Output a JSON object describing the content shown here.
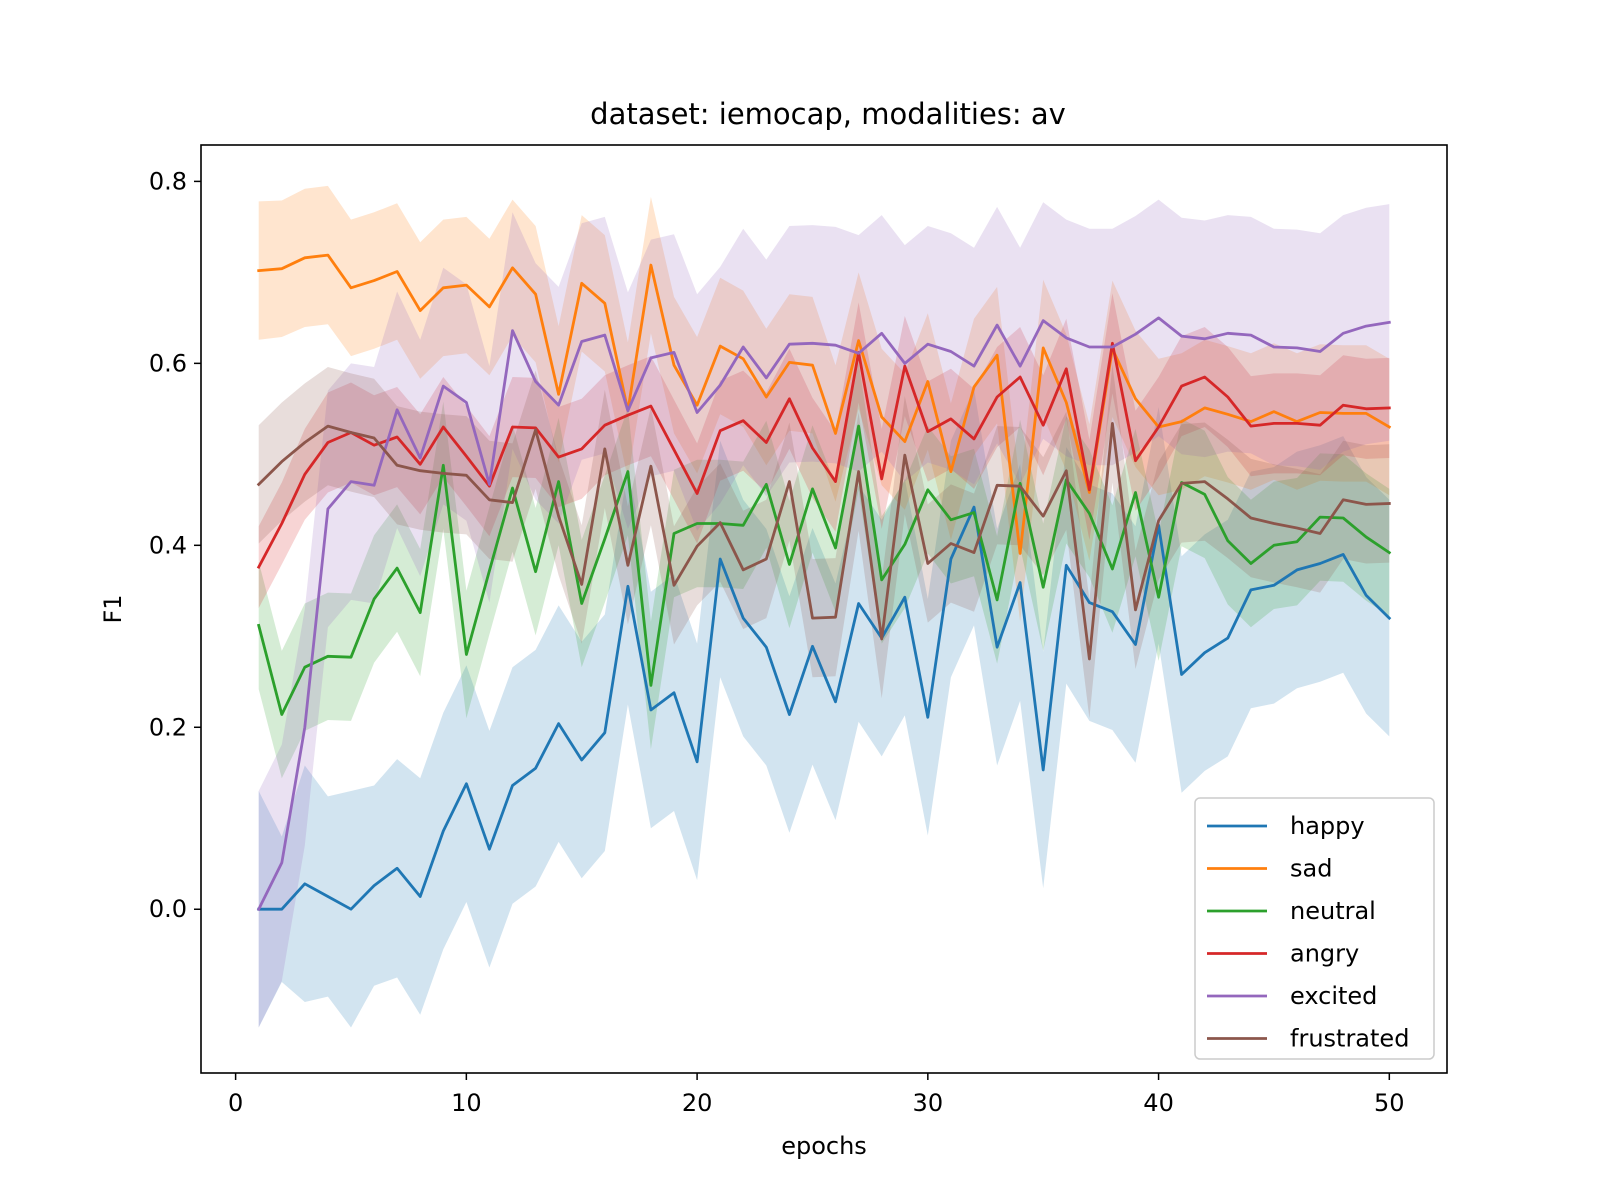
{
  "chart_data": {
    "type": "line",
    "title": "dataset: iemocap, modalities: av",
    "xlabel": "epochs",
    "ylabel": "F1",
    "xlim": [
      -1.5,
      52.5
    ],
    "ylim": [
      -0.18,
      0.84
    ],
    "xticks": [
      0,
      10,
      20,
      30,
      40,
      50
    ],
    "yticks": [
      0.0,
      0.2,
      0.4,
      0.6,
      0.8
    ],
    "xtick_labels": [
      "0",
      "10",
      "20",
      "30",
      "40",
      "50"
    ],
    "ytick_labels": [
      "0.0",
      "0.2",
      "0.4",
      "0.6",
      "0.8"
    ],
    "grid": false,
    "legend_position": "lower-right",
    "x": [
      1,
      2,
      3,
      4,
      5,
      6,
      7,
      8,
      9,
      10,
      11,
      12,
      13,
      14,
      15,
      16,
      17,
      18,
      19,
      20,
      21,
      22,
      23,
      24,
      25,
      26,
      27,
      28,
      29,
      30,
      31,
      32,
      33,
      34,
      35,
      36,
      37,
      38,
      39,
      40,
      41,
      42,
      43,
      44,
      45,
      46,
      47,
      48,
      49,
      50
    ],
    "series": [
      {
        "name": "happy",
        "color": "#1f77b4",
        "values": [
          0.0,
          0.0,
          0.028,
          0.014,
          0.0,
          0.026,
          0.045,
          0.014,
          0.086,
          0.138,
          0.066,
          0.136,
          0.155,
          0.204,
          0.164,
          0.194,
          0.355,
          0.219,
          0.238,
          0.162,
          0.385,
          0.32,
          0.288,
          0.214,
          0.289,
          0.228,
          0.336,
          0.298,
          0.343,
          0.211,
          0.385,
          0.442,
          0.288,
          0.359,
          0.153,
          0.378,
          0.337,
          0.327,
          0.291,
          0.422,
          0.258,
          0.282,
          0.298,
          0.351,
          0.356,
          0.373,
          0.38,
          0.39,
          0.345,
          0.32
        ],
        "band": [
          0.13,
          0.08,
          0.13,
          0.11,
          0.13,
          0.11,
          0.12,
          0.13,
          0.13,
          0.13,
          0.13,
          0.13,
          0.13,
          0.13,
          0.13,
          0.13,
          0.13,
          0.13,
          0.13,
          0.13,
          0.13,
          0.13,
          0.13,
          0.13,
          0.13,
          0.13,
          0.13,
          0.13,
          0.13,
          0.13,
          0.13,
          0.13,
          0.13,
          0.13,
          0.13,
          0.13,
          0.13,
          0.13,
          0.13,
          0.13,
          0.13,
          0.13,
          0.13,
          0.13,
          0.13,
          0.13,
          0.13,
          0.13,
          0.13,
          0.13
        ]
      },
      {
        "name": "sad",
        "color": "#ff7f0e",
        "values": [
          0.702,
          0.704,
          0.716,
          0.719,
          0.683,
          0.691,
          0.701,
          0.658,
          0.683,
          0.686,
          0.662,
          0.705,
          0.676,
          0.566,
          0.688,
          0.666,
          0.548,
          0.708,
          0.598,
          0.554,
          0.619,
          0.605,
          0.563,
          0.601,
          0.598,
          0.523,
          0.625,
          0.541,
          0.514,
          0.58,
          0.481,
          0.574,
          0.609,
          0.391,
          0.617,
          0.557,
          0.458,
          0.616,
          0.561,
          0.53,
          0.536,
          0.551,
          0.544,
          0.536,
          0.547,
          0.536,
          0.546,
          0.545,
          0.545,
          0.53
        ],
        "band": [
          0.076,
          0.075,
          0.076,
          0.076,
          0.075,
          0.075,
          0.075,
          0.075,
          0.075,
          0.075,
          0.075,
          0.075,
          0.075,
          0.075,
          0.075,
          0.075,
          0.075,
          0.075,
          0.075,
          0.075,
          0.075,
          0.075,
          0.075,
          0.075,
          0.075,
          0.075,
          0.075,
          0.075,
          0.075,
          0.075,
          0.075,
          0.075,
          0.075,
          0.075,
          0.075,
          0.075,
          0.075,
          0.075,
          0.075,
          0.075,
          0.075,
          0.075,
          0.075,
          0.075,
          0.075,
          0.075,
          0.075,
          0.075,
          0.075,
          0.075
        ]
      },
      {
        "name": "neutral",
        "color": "#2ca02c",
        "values": [
          0.312,
          0.214,
          0.266,
          0.278,
          0.277,
          0.341,
          0.375,
          0.326,
          0.488,
          0.28,
          0.372,
          0.463,
          0.371,
          0.47,
          0.336,
          0.407,
          0.481,
          0.246,
          0.413,
          0.424,
          0.424,
          0.422,
          0.467,
          0.379,
          0.462,
          0.397,
          0.531,
          0.362,
          0.401,
          0.461,
          0.428,
          0.436,
          0.34,
          0.468,
          0.354,
          0.472,
          0.435,
          0.374,
          0.458,
          0.343,
          0.469,
          0.456,
          0.405,
          0.38,
          0.4,
          0.404,
          0.431,
          0.43,
          0.409,
          0.392
        ],
        "band": [
          0.07,
          0.07,
          0.07,
          0.07,
          0.07,
          0.07,
          0.07,
          0.07,
          0.07,
          0.07,
          0.07,
          0.07,
          0.07,
          0.07,
          0.07,
          0.07,
          0.07,
          0.07,
          0.07,
          0.07,
          0.07,
          0.07,
          0.07,
          0.07,
          0.07,
          0.07,
          0.07,
          0.07,
          0.07,
          0.07,
          0.07,
          0.07,
          0.07,
          0.07,
          0.07,
          0.07,
          0.07,
          0.07,
          0.07,
          0.07,
          0.07,
          0.07,
          0.07,
          0.07,
          0.07,
          0.07,
          0.07,
          0.07,
          0.07,
          0.07
        ]
      },
      {
        "name": "angry",
        "color": "#d62728",
        "values": [
          0.376,
          0.424,
          0.478,
          0.513,
          0.524,
          0.51,
          0.519,
          0.489,
          0.53,
          0.498,
          0.465,
          0.53,
          0.529,
          0.497,
          0.506,
          0.532,
          0.543,
          0.553,
          0.505,
          0.457,
          0.526,
          0.537,
          0.513,
          0.561,
          0.507,
          0.47,
          0.612,
          0.473,
          0.597,
          0.525,
          0.539,
          0.517,
          0.563,
          0.585,
          0.532,
          0.594,
          0.461,
          0.622,
          0.493,
          0.53,
          0.575,
          0.585,
          0.563,
          0.531,
          0.534,
          0.534,
          0.532,
          0.554,
          0.55,
          0.551
        ],
        "band": [
          0.045,
          0.045,
          0.05,
          0.055,
          0.055,
          0.055,
          0.055,
          0.055,
          0.055,
          0.055,
          0.055,
          0.055,
          0.055,
          0.055,
          0.055,
          0.055,
          0.055,
          0.055,
          0.055,
          0.055,
          0.055,
          0.055,
          0.055,
          0.055,
          0.055,
          0.055,
          0.055,
          0.055,
          0.055,
          0.055,
          0.055,
          0.055,
          0.055,
          0.055,
          0.055,
          0.055,
          0.055,
          0.055,
          0.055,
          0.055,
          0.055,
          0.055,
          0.055,
          0.055,
          0.055,
          0.055,
          0.055,
          0.055,
          0.055,
          0.055
        ]
      },
      {
        "name": "excited",
        "color": "#9467bd",
        "values": [
          0.0,
          0.051,
          0.2,
          0.44,
          0.47,
          0.466,
          0.549,
          0.496,
          0.575,
          0.557,
          0.467,
          0.636,
          0.58,
          0.554,
          0.624,
          0.631,
          0.548,
          0.606,
          0.612,
          0.546,
          0.576,
          0.618,
          0.584,
          0.621,
          0.622,
          0.62,
          0.611,
          0.633,
          0.6,
          0.621,
          0.613,
          0.597,
          0.642,
          0.597,
          0.647,
          0.628,
          0.618,
          0.618,
          0.632,
          0.65,
          0.63,
          0.627,
          0.633,
          0.631,
          0.618,
          0.617,
          0.613,
          0.633,
          0.641,
          0.645
        ],
        "band": [
          0.13,
          0.13,
          0.13,
          0.13,
          0.13,
          0.13,
          0.13,
          0.13,
          0.13,
          0.13,
          0.13,
          0.13,
          0.13,
          0.13,
          0.13,
          0.13,
          0.13,
          0.13,
          0.13,
          0.13,
          0.13,
          0.13,
          0.13,
          0.13,
          0.13,
          0.13,
          0.13,
          0.13,
          0.13,
          0.13,
          0.13,
          0.13,
          0.13,
          0.13,
          0.13,
          0.13,
          0.13,
          0.13,
          0.13,
          0.13,
          0.13,
          0.13,
          0.13,
          0.13,
          0.13,
          0.13,
          0.13,
          0.13,
          0.13,
          0.13
        ]
      },
      {
        "name": "frustrated",
        "color": "#8c564b",
        "values": [
          0.467,
          0.492,
          0.513,
          0.531,
          0.524,
          0.518,
          0.488,
          0.482,
          0.479,
          0.477,
          0.45,
          0.447,
          0.527,
          0.432,
          0.357,
          0.506,
          0.378,
          0.487,
          0.356,
          0.399,
          0.425,
          0.373,
          0.385,
          0.47,
          0.32,
          0.321,
          0.481,
          0.297,
          0.499,
          0.38,
          0.402,
          0.392,
          0.466,
          0.465,
          0.432,
          0.482,
          0.275,
          0.534,
          0.329,
          0.427,
          0.468,
          0.47,
          0.451,
          0.43,
          0.424,
          0.419,
          0.413,
          0.45,
          0.445,
          0.446
        ],
        "band": [
          0.065,
          0.065,
          0.065,
          0.065,
          0.065,
          0.065,
          0.065,
          0.065,
          0.065,
          0.065,
          0.065,
          0.065,
          0.065,
          0.065,
          0.065,
          0.065,
          0.065,
          0.065,
          0.065,
          0.065,
          0.065,
          0.065,
          0.065,
          0.065,
          0.065,
          0.065,
          0.065,
          0.065,
          0.065,
          0.065,
          0.065,
          0.065,
          0.065,
          0.065,
          0.065,
          0.065,
          0.065,
          0.065,
          0.065,
          0.065,
          0.065,
          0.065,
          0.065,
          0.065,
          0.065,
          0.065,
          0.065,
          0.065,
          0.065,
          0.065
        ]
      }
    ]
  }
}
